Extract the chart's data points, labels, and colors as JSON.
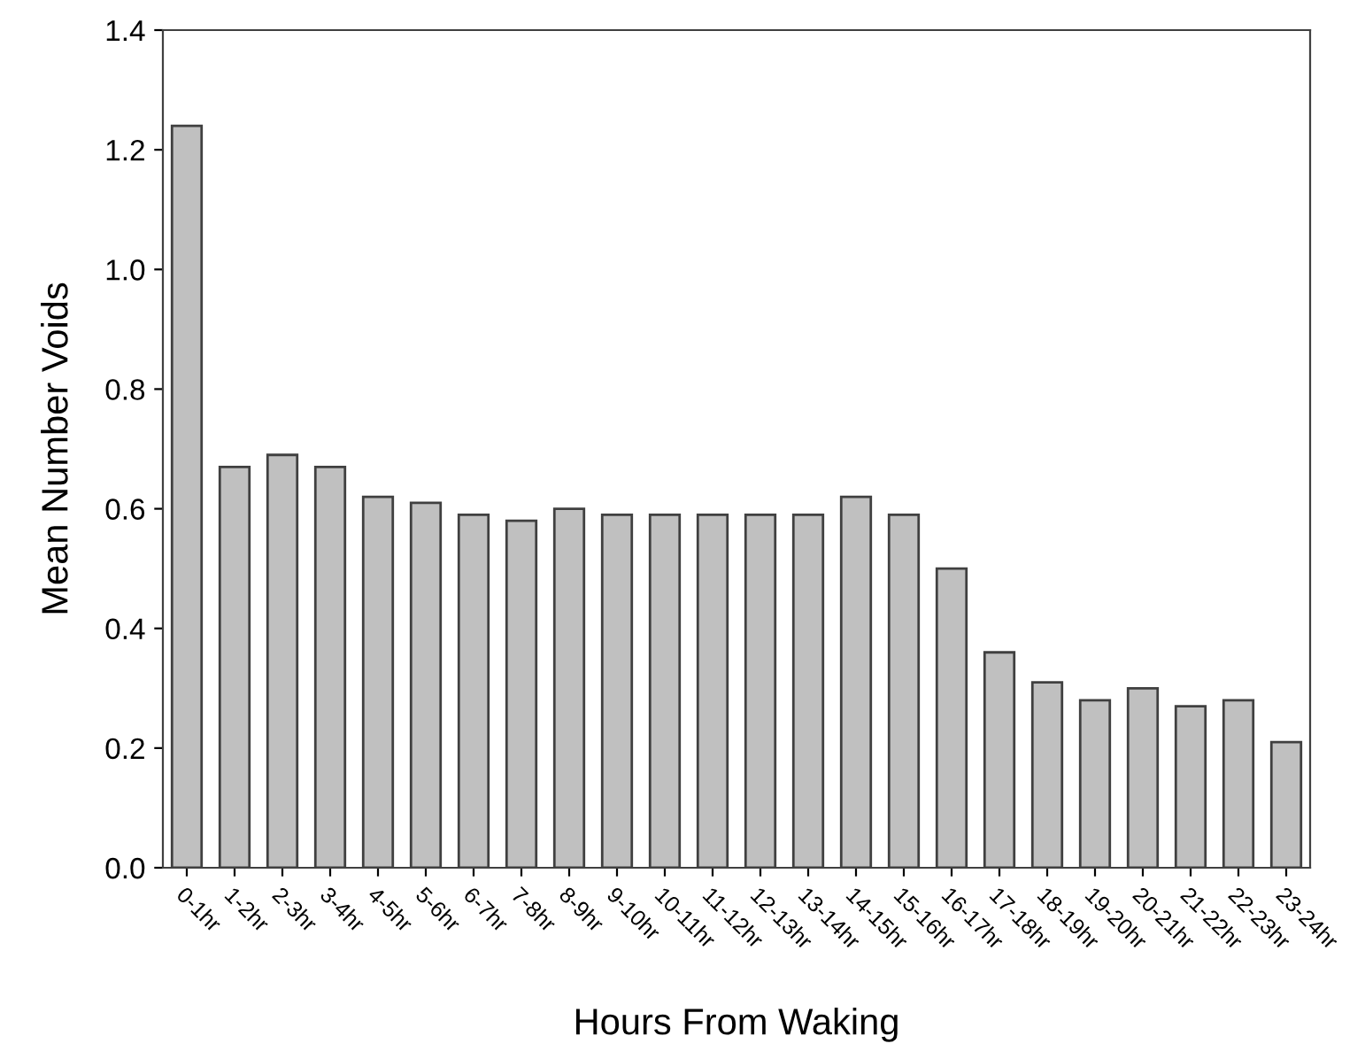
{
  "chart_data": {
    "type": "bar",
    "xlabel": "Hours From Waking",
    "ylabel": "Mean Number Voids",
    "categories": [
      "0-1hr",
      "1-2hr",
      "2-3hr",
      "3-4hr",
      "4-5hr",
      "5-6hr",
      "6-7hr",
      "7-8hr",
      "8-9hr",
      "9-10hr",
      "10-11hr",
      "11-12hr",
      "12-13hr",
      "13-14hr",
      "14-15hr",
      "15-16hr",
      "16-17hr",
      "17-18hr",
      "18-19hr",
      "19-20hr",
      "20-21hr",
      "21-22hr",
      "22-23hr",
      "23-24hr"
    ],
    "values": [
      1.24,
      0.67,
      0.69,
      0.67,
      0.62,
      0.61,
      0.59,
      0.58,
      0.6,
      0.59,
      0.59,
      0.59,
      0.59,
      0.59,
      0.62,
      0.59,
      0.5,
      0.36,
      0.31,
      0.28,
      0.3,
      0.27,
      0.28,
      0.21
    ],
    "color": "#c0c0c0",
    "ylim": [
      0,
      1.4
    ],
    "yticks": [
      {
        "value": 0,
        "label": "0.0"
      },
      {
        "value": 0.2,
        "label": "0.2"
      },
      {
        "value": 0.4,
        "label": "0.4"
      },
      {
        "value": 0.6,
        "label": "0.6"
      },
      {
        "value": 0.8,
        "label": "0.8"
      },
      {
        "value": 1.0,
        "label": "1.0"
      },
      {
        "value": 1.2,
        "label": "1.2"
      },
      {
        "value": 1.4,
        "label": "1.4"
      }
    ],
    "grid": false,
    "legend": false
  }
}
